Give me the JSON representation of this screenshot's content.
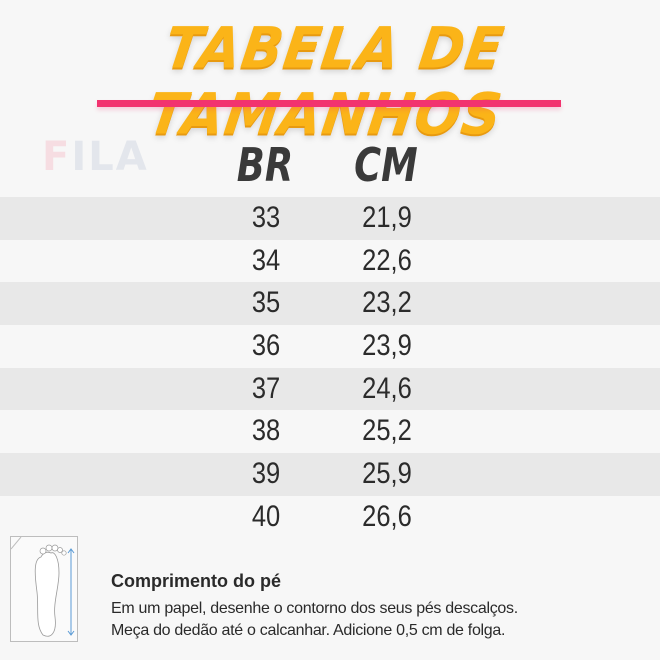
{
  "title": "TABELA DE TAMANHOS",
  "brand_logo": "FILA",
  "colors": {
    "title": "#fbb418",
    "underline": "#f2336f",
    "stripe": "#e8e8e8",
    "background": "#f7f7f7"
  },
  "table": {
    "headers": [
      "BR",
      "CM"
    ],
    "rows": [
      [
        "33",
        "21,9"
      ],
      [
        "34",
        "22,6"
      ],
      [
        "35",
        "23,2"
      ],
      [
        "36",
        "23,9"
      ],
      [
        "37",
        "24,6"
      ],
      [
        "38",
        "25,2"
      ],
      [
        "39",
        "25,9"
      ],
      [
        "40",
        "26,6"
      ]
    ]
  },
  "info": {
    "icon": "foot-measure-icon",
    "title": "Comprimento do pé",
    "lines": [
      "Em um papel, desenhe o contorno dos seus pés descalços.",
      "Meça do dedão até o calcanhar. Adicione 0,5 cm de folga."
    ]
  }
}
